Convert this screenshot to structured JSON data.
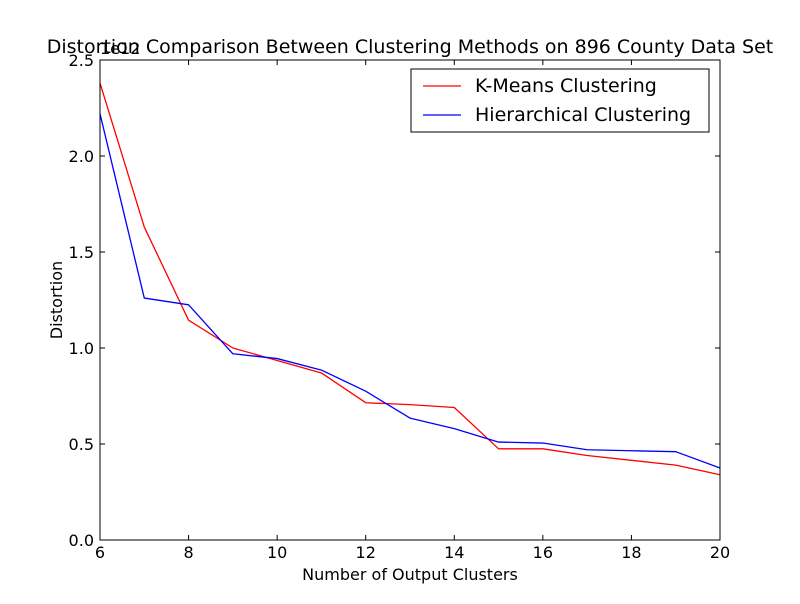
{
  "chart_data": {
    "type": "line",
    "title": "Distortion Comparison Between Clustering Methods on 896 County Data Set",
    "xlabel": "Number of Output Clusters",
    "ylabel": "Distortion",
    "y_offset_label": "1e12",
    "xlim": [
      6,
      20
    ],
    "ylim": [
      0,
      2.5
    ],
    "xticks": [
      6,
      8,
      10,
      12,
      14,
      16,
      18,
      20
    ],
    "xtick_labels": [
      "6",
      "8",
      "10",
      "12",
      "14",
      "16",
      "18",
      "20"
    ],
    "yticks": [
      0.0,
      0.5,
      1.0,
      1.5,
      2.0,
      2.5
    ],
    "ytick_labels": [
      "0.0",
      "0.5",
      "1.0",
      "1.5",
      "2.0",
      "2.5"
    ],
    "grid": false,
    "legend_position": "upper right",
    "x": [
      6,
      7,
      8,
      9,
      10,
      11,
      12,
      13,
      14,
      15,
      16,
      17,
      18,
      19,
      20
    ],
    "series": [
      {
        "name": "K-Means Clustering",
        "color": "#ff0000",
        "values": [
          2.38,
          1.63,
          1.145,
          1.0,
          0.935,
          0.87,
          0.715,
          0.705,
          0.69,
          0.475,
          0.475,
          0.44,
          0.415,
          0.39,
          0.34
        ]
      },
      {
        "name": "Hierarchical Clustering",
        "color": "#0000ff",
        "values": [
          2.22,
          1.26,
          1.225,
          0.97,
          0.945,
          0.885,
          0.775,
          0.635,
          0.58,
          0.51,
          0.505,
          0.47,
          0.465,
          0.46,
          0.375
        ]
      }
    ]
  }
}
